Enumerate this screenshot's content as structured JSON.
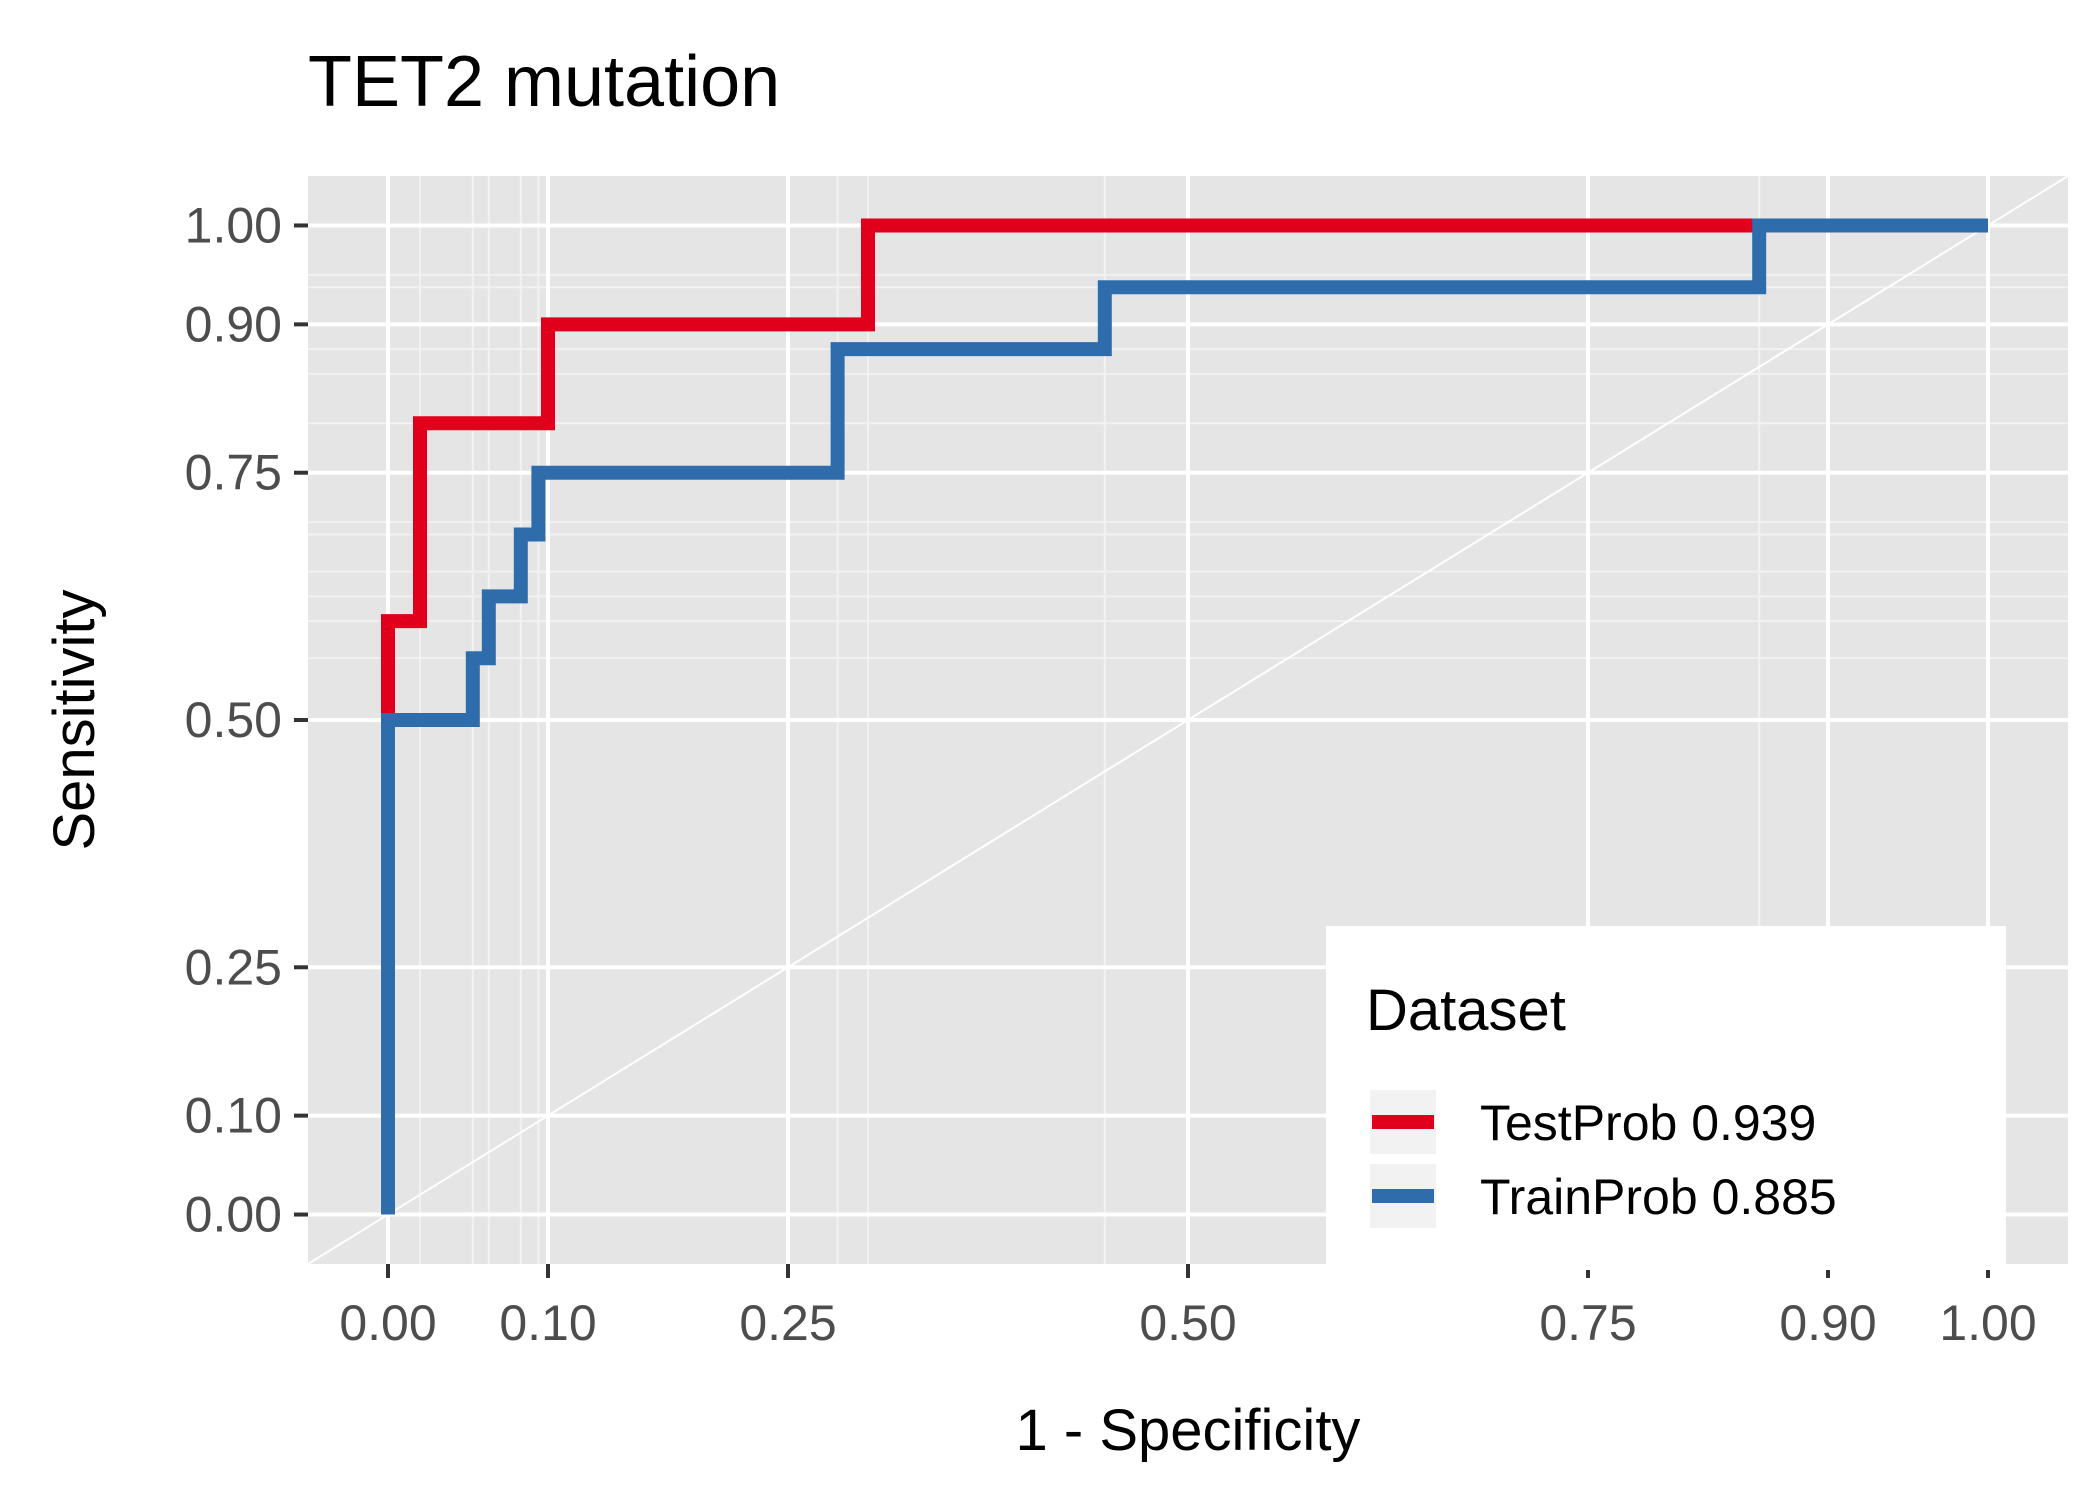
{
  "chart_data": {
    "type": "line",
    "title": "TET2 mutation",
    "xlabel": "1 - Specificity",
    "ylabel": "Sensitivity",
    "xlim": [
      -0.05,
      1.05
    ],
    "ylim": [
      -0.05,
      1.05
    ],
    "x_ticks": [
      0.0,
      0.1,
      0.25,
      0.5,
      0.75,
      0.9,
      1.0
    ],
    "x_tick_labels": [
      "0.00",
      "0.10",
      "0.25",
      "0.50",
      "0.75",
      "0.90",
      "1.00"
    ],
    "y_ticks": [
      0.0,
      0.1,
      0.25,
      0.5,
      0.75,
      0.9,
      1.0
    ],
    "y_tick_labels": [
      "0.00",
      "0.10",
      "0.25",
      "0.50",
      "0.75",
      "0.90",
      "1.00"
    ],
    "grid": true,
    "diagonal_reference": true,
    "legend": {
      "title": "Dataset",
      "placement": "bottom-right",
      "entries": [
        "TestProb 0.939",
        "TrainProb 0.885"
      ]
    },
    "series": [
      {
        "name": "TestProb 0.939",
        "color": "#e0001b",
        "x": [
          0.0,
          0.0,
          0.0,
          0.02,
          0.02,
          0.02,
          0.02,
          0.1,
          0.1,
          0.1,
          0.3,
          0.3,
          0.3,
          1.0
        ],
        "y": [
          0.0,
          0.5,
          0.6,
          0.6,
          0.65,
          0.7,
          0.8,
          0.8,
          0.85,
          0.9,
          0.9,
          0.95,
          1.0,
          1.0
        ]
      },
      {
        "name": "TrainProb 0.885",
        "color": "#2f6cab",
        "x": [
          0.0,
          0.0,
          0.053,
          0.053,
          0.063,
          0.063,
          0.083,
          0.083,
          0.094,
          0.094,
          0.281,
          0.281,
          0.448,
          0.448,
          0.857,
          0.857,
          1.0
        ],
        "y": [
          0.0,
          0.5,
          0.5,
          0.5625,
          0.5625,
          0.625,
          0.625,
          0.6875,
          0.6875,
          0.75,
          0.75,
          0.875,
          0.875,
          0.9375,
          0.9375,
          1.0,
          1.0
        ]
      }
    ]
  }
}
